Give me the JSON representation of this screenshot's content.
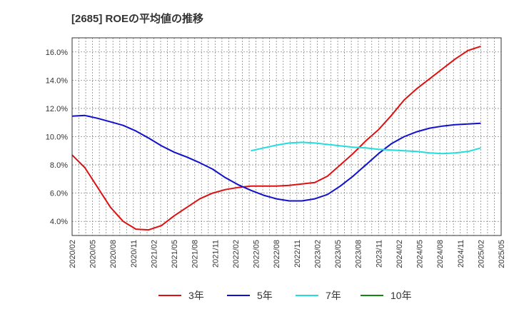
{
  "chart_data": {
    "type": "line",
    "title": "[2685]  ROEの平均値の推移",
    "xlabel": "",
    "ylabel": "",
    "ylim": [
      3.0,
      17.0
    ],
    "y_ticks": [
      4.0,
      6.0,
      8.0,
      10.0,
      12.0,
      14.0,
      16.0
    ],
    "y_tick_labels": [
      "4.0%",
      "6.0%",
      "8.0%",
      "10.0%",
      "12.0%",
      "14.0%",
      "16.0%"
    ],
    "x_tick_labels": [
      "2020/02",
      "2020/05",
      "2020/08",
      "2020/11",
      "2021/02",
      "2021/05",
      "2021/08",
      "2021/11",
      "2022/02",
      "2022/05",
      "2022/08",
      "2022/11",
      "2023/02",
      "2023/05",
      "2023/08",
      "2023/11",
      "2024/02",
      "2024/05",
      "2024/08",
      "2024/11",
      "2025/02",
      "2025/05"
    ],
    "grid": true,
    "legend_position": "bottom",
    "series": [
      {
        "name": "3年",
        "color": "#dd1111",
        "values": [
          8.7,
          7.8,
          6.4,
          5.0,
          4.0,
          3.45,
          3.4,
          3.7,
          4.4,
          5.0,
          5.6,
          6.0,
          6.25,
          6.4,
          6.5,
          6.5,
          6.5,
          6.55,
          6.65,
          6.75,
          7.2,
          8.0,
          8.8,
          9.7,
          10.5,
          11.5,
          12.6,
          13.4,
          14.1,
          14.8,
          15.5,
          16.1,
          16.4
        ]
      },
      {
        "name": "5年",
        "color": "#1111cc",
        "values": [
          11.45,
          11.5,
          11.3,
          11.05,
          10.8,
          10.4,
          9.9,
          9.35,
          8.9,
          8.55,
          8.15,
          7.7,
          7.1,
          6.6,
          6.2,
          5.85,
          5.6,
          5.45,
          5.45,
          5.6,
          5.9,
          6.5,
          7.2,
          8.0,
          8.8,
          9.5,
          10.0,
          10.35,
          10.6,
          10.75,
          10.85,
          10.9,
          10.95
        ]
      },
      {
        "name": "7年",
        "color": "#22dddd",
        "values": [
          null,
          null,
          null,
          null,
          null,
          null,
          null,
          null,
          null,
          null,
          null,
          null,
          null,
          null,
          9.0,
          9.2,
          9.4,
          9.55,
          9.6,
          9.55,
          9.45,
          9.35,
          9.25,
          9.2,
          9.1,
          9.05,
          9.0,
          8.95,
          8.85,
          8.8,
          8.85,
          8.95,
          9.2
        ]
      },
      {
        "name": "10年",
        "color": "#118811",
        "values": []
      }
    ]
  }
}
